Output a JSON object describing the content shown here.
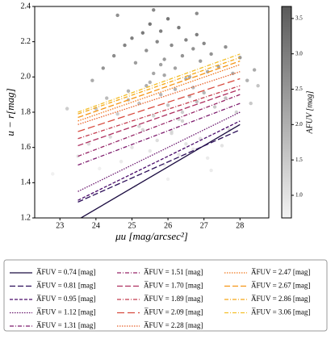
{
  "chart_data": {
    "type": "scatter-lines",
    "x_label": "μu [mag/arcsec²]",
    "y_label": "u − r[mag]",
    "xlim": [
      22.3,
      28.8
    ],
    "ylim": [
      1.2,
      2.4
    ],
    "xticks": [
      23,
      24,
      25,
      26,
      27,
      28
    ],
    "yticks": [
      1.2,
      1.4,
      1.6,
      1.8,
      {
        "value": 2,
        "label": "2.0"
      },
      2.2,
      2.4
    ],
    "points": {
      "x": [
        24.2,
        24.5,
        24.8,
        25.0,
        25.1,
        25.3,
        25.4,
        25.5,
        25.6,
        25.7,
        25.8,
        25.9,
        26.0,
        26.1,
        26.2,
        26.3,
        26.4,
        26.5,
        26.6,
        26.7,
        26.8,
        26.9,
        27.0,
        27.2,
        27.4,
        27.6,
        27.8,
        28.0,
        28.2,
        28.4,
        24.0,
        24.3,
        24.6,
        24.9,
        25.2,
        25.4,
        25.6,
        25.8,
        26.0,
        26.2,
        26.4,
        26.6,
        26.8,
        27.0,
        27.3,
        27.6,
        27.9,
        28.3,
        23.5,
        23.8,
        24.1,
        24.4,
        24.7,
        25.0,
        25.3,
        25.5,
        25.7,
        25.9,
        26.1,
        26.3,
        26.5,
        26.7,
        26.9,
        27.1,
        27.5,
        22.8,
        23.2,
        23.9,
        24.6,
        25.1,
        25.6,
        26.0,
        26.4,
        26.8,
        27.2,
        27.7,
        28.5,
        25.2,
        25.5,
        25.9,
        26.3,
        26.7,
        26.1,
        25.8,
        26.5,
        24.9,
        27.1
      ],
      "y": [
        2.05,
        2.12,
        2.18,
        2.22,
        2.08,
        2.25,
        2.15,
        2.3,
        2.02,
        2.2,
        2.26,
        2.1,
        2.33,
        2.18,
        2.05,
        2.28,
        2.12,
        2.21,
        2.0,
        2.16,
        2.24,
        2.09,
        2.19,
        2.13,
        2.06,
        2.17,
        2.02,
        2.11,
        1.98,
        2.04,
        1.82,
        1.88,
        1.79,
        1.92,
        1.85,
        1.95,
        1.78,
        1.9,
        1.84,
        1.93,
        1.8,
        1.89,
        1.86,
        1.91,
        1.83,
        1.88,
        1.8,
        1.85,
        1.55,
        1.62,
        1.48,
        1.66,
        1.52,
        1.6,
        1.7,
        1.58,
        1.64,
        1.5,
        1.68,
        1.56,
        1.62,
        1.59,
        1.65,
        1.54,
        1.61,
        1.45,
        1.82,
        1.98,
        2.35,
        1.38,
        2.38,
        1.42,
        1.75,
        2.36,
        1.47,
        1.7,
        1.95,
        1.72,
        1.97,
        2.01,
        1.76,
        1.94,
        1.69,
        2.07,
        1.99,
        1.87,
        2.03
      ],
      "c": [
        2.9,
        3.1,
        3.3,
        3.4,
        2.7,
        3.5,
        3.0,
        3.6,
        2.5,
        3.2,
        3.4,
        2.8,
        3.6,
        3.1,
        2.6,
        3.5,
        2.9,
        3.3,
        2.4,
        3.0,
        3.4,
        2.7,
        3.2,
        2.9,
        2.5,
        3.0,
        2.3,
        2.8,
        2.2,
        2.4,
        1.8,
        2.0,
        1.6,
        2.2,
        1.9,
        2.3,
        1.5,
        2.1,
        1.8,
        2.2,
        1.6,
        2.0,
        1.9,
        2.1,
        1.7,
        1.9,
        1.5,
        1.7,
        1.0,
        1.2,
        0.8,
        1.3,
        0.9,
        1.1,
        1.4,
        1.0,
        1.2,
        0.9,
        1.3,
        1.0,
        1.1,
        1.0,
        1.2,
        0.9,
        1.1,
        0.8,
        1.6,
        2.4,
        3.0,
        0.7,
        3.2,
        0.8,
        1.5,
        3.1,
        0.9,
        1.3,
        1.8,
        1.4,
        2.2,
        2.5,
        1.5,
        2.1,
        1.3,
        2.6,
        2.3,
        1.9,
        2.4
      ]
    },
    "colorbar": {
      "label": "AFUV [mag]",
      "clim": [
        0.68,
        3.67
      ],
      "colors": [
        "#f3f3f3",
        "#5a5a5a"
      ],
      "ticks": [
        {
          "value": 1,
          "label": "1.0"
        },
        1.5,
        {
          "value": 2,
          "label": "2.0"
        },
        2.5,
        {
          "value": 3,
          "label": "3.0"
        },
        3.5
      ]
    },
    "series": [
      {
        "name": "A̅FUV = 0.74 [mag]",
        "color": "#1b0c41",
        "dash": "none",
        "x": [
          23.5,
          28
        ],
        "values": [
          1.19,
          1.73
        ]
      },
      {
        "name": "A̅FUV = 0.81 [mag]",
        "color": "#2c0f59",
        "dash": "7,3",
        "x": [
          23.5,
          28
        ],
        "values": [
          1.29,
          1.7
        ]
      },
      {
        "name": "A̅FUV = 0.95 [mag]",
        "color": "#4a0c6b",
        "dash": "4,2",
        "x": [
          23.5,
          28
        ],
        "values": [
          1.3,
          1.75
        ]
      },
      {
        "name": "A̅FUV = 1.12 [mag]",
        "color": "#6a176e",
        "dash": "1.5,1.5",
        "x": [
          23.5,
          28
        ],
        "values": [
          1.35,
          1.8
        ]
      },
      {
        "name": "A̅FUV = 1.31 [mag]",
        "color": "#7e1c6e",
        "dash": "5,2,1,2",
        "x": [
          23.5,
          28
        ],
        "values": [
          1.5,
          1.85
        ]
      },
      {
        "name": "A̅FUV = 1.51 [mag]",
        "color": "#962567",
        "dash": "5,2,1,2",
        "x": [
          23.5,
          28
        ],
        "values": [
          1.55,
          1.9
        ]
      },
      {
        "name": "A̅FUV = 1.70 [mag]",
        "color": "#ae3060",
        "dash": "7,3",
        "x": [
          23.5,
          28
        ],
        "values": [
          1.61,
          1.93
        ]
      },
      {
        "name": "A̅FUV = 1.89 [mag]",
        "color": "#c43c4e",
        "dash": "5,2,1,2",
        "x": [
          23.5,
          28
        ],
        "values": [
          1.65,
          1.95
        ]
      },
      {
        "name": "A̅FUV = 2.09 [mag]",
        "color": "#d84b3f",
        "dash": "9,4",
        "x": [
          23.5,
          28
        ],
        "values": [
          1.69,
          1.99
        ]
      },
      {
        "name": "A̅FUV = 2.28 [mag]",
        "color": "#e8622a",
        "dash": "1.5,1.5",
        "x": [
          23.5,
          28
        ],
        "values": [
          1.73,
          2.03
        ]
      },
      {
        "name": "A̅FUV = 2.47 [mag]",
        "color": "#f0781c",
        "dash": "1.5,1.5",
        "x": [
          23.5,
          28
        ],
        "values": [
          1.75,
          2.07
        ]
      },
      {
        "name": "A̅FUV = 2.67 [mag]",
        "color": "#f59515",
        "dash": "7,3",
        "x": [
          23.5,
          28
        ],
        "values": [
          1.77,
          2.09
        ]
      },
      {
        "name": "A̅FUV = 2.86 [mag]",
        "color": "#f5a817",
        "dash": "5,2,1,2",
        "x": [
          23.5,
          28
        ],
        "values": [
          1.79,
          2.11
        ]
      },
      {
        "name": "A̅FUV = 3.06 [mag]",
        "color": "#f4bf2a",
        "dash": "5,2,1,2",
        "x": [
          23.5,
          28
        ],
        "values": [
          1.8,
          2.13
        ]
      }
    ]
  }
}
